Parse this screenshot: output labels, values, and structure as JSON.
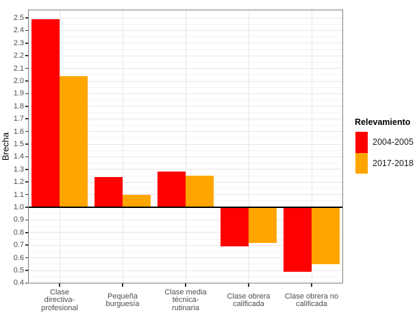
{
  "chart_data": {
    "type": "bar",
    "title": "",
    "xlabel": "",
    "ylabel": "Brecha",
    "categories": [
      "Clase\ndirectiva-\nprofesional",
      "Pequeña\nburguesía",
      "Clase media\ntécnica-\nrutinaria",
      "Clase obrera\ncalificada",
      "Clase obrera no\ncalificada"
    ],
    "series": [
      {
        "name": "2004-2005",
        "color": "#FF0000",
        "values": [
          2.49,
          1.24,
          1.28,
          0.69,
          0.49
        ]
      },
      {
        "name": "2017-2018",
        "color": "#FFA500",
        "values": [
          2.04,
          1.1,
          1.25,
          0.72,
          0.55
        ]
      }
    ],
    "baseline": 1.0,
    "ylim": [
      0.397,
      2.565
    ],
    "y_tick_min": 0.4,
    "y_tick_max": 2.5,
    "y_tick_step": 0.1,
    "grid": "major-and-minor",
    "legend": {
      "title": "Relevamiento",
      "position": "right"
    }
  }
}
